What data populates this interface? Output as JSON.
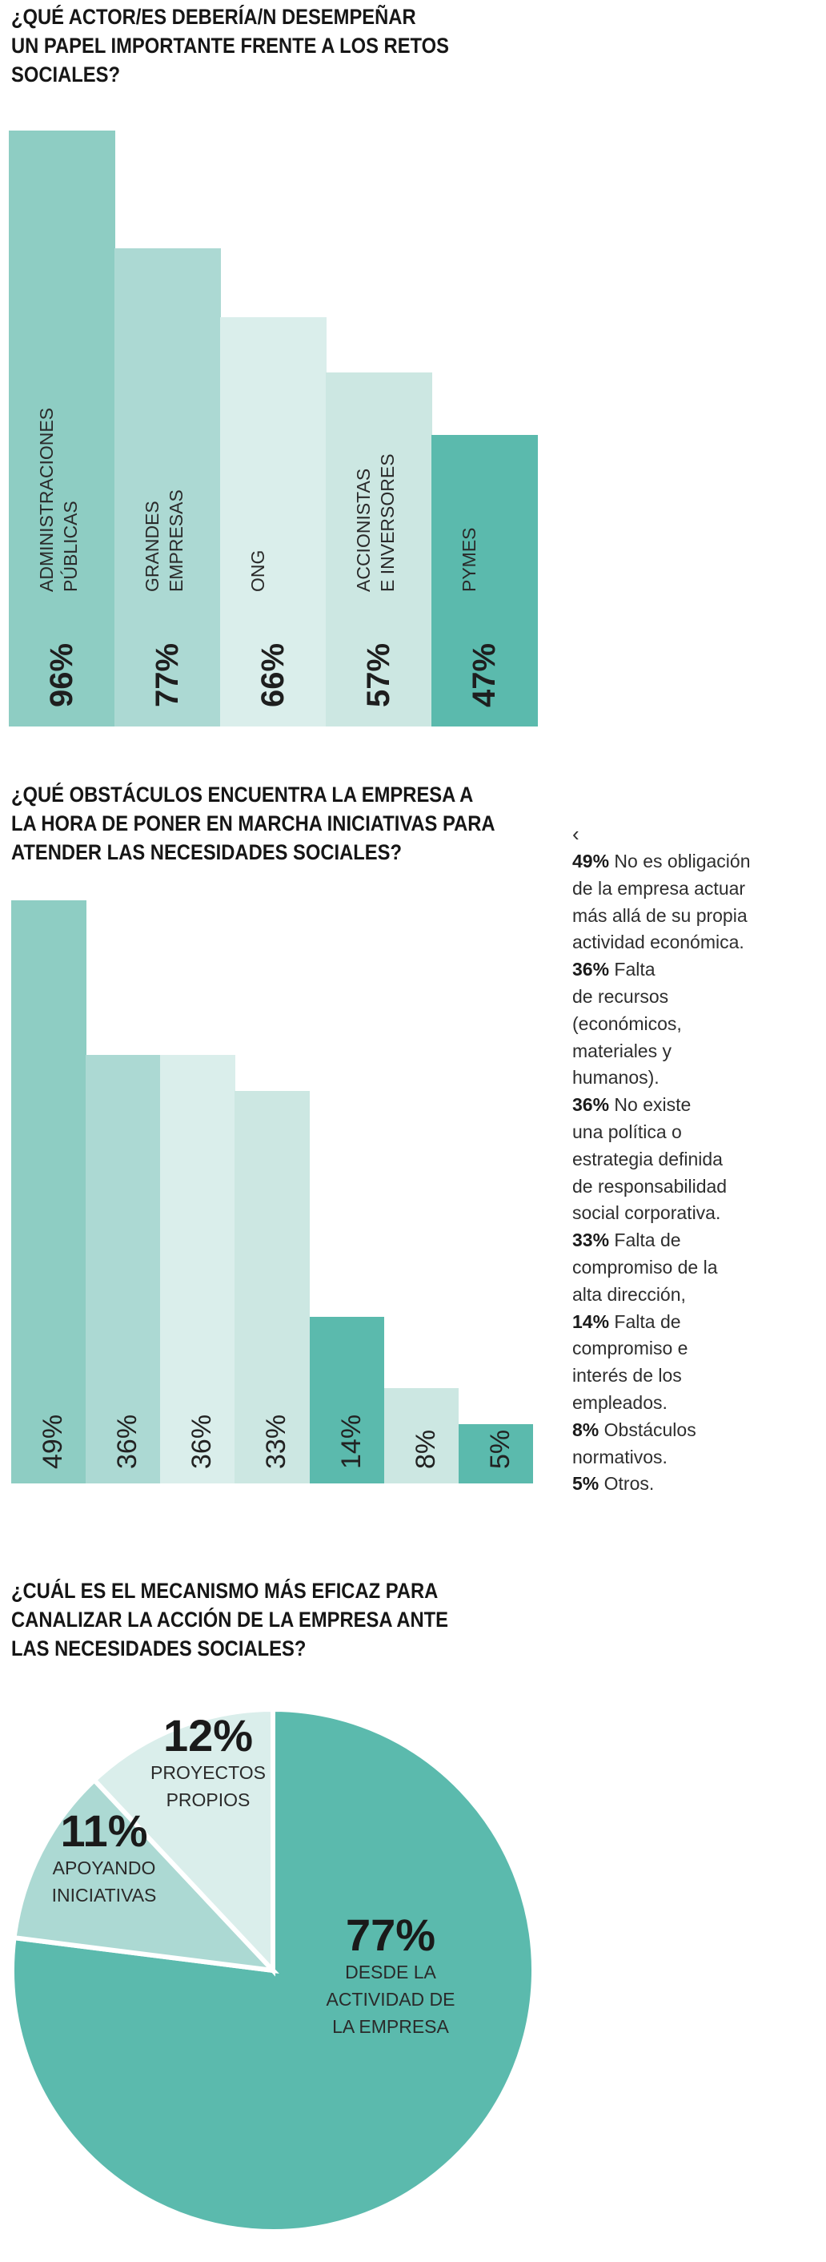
{
  "chart_data": [
    {
      "type": "bar",
      "title": "¿QUÉ ACTOR/ES DEBERÍA/N DESEMPEÑAR UN PAPEL IMPORTANTE FRENTE A LOS RETOS SOCIALES?",
      "title_lines": [
        "¿QUÉ ACTOR/ES DEBERÍA/N DESEMPEÑAR",
        "UN PAPEL IMPORTANTE FRENTE A LOS RETOS",
        "SOCIALES?"
      ],
      "categories": [
        "ADMINISTRACIONES PÚBLICAS",
        "GRANDES EMPRESAS",
        "ONG",
        "ACCIONISTAS E INVERSORES",
        "PYMES"
      ],
      "category_lines": [
        [
          "ADMINISTRACIONES",
          "PÚBLICAS"
        ],
        [
          "GRANDES",
          "EMPRESAS"
        ],
        [
          "ONG"
        ],
        [
          "ACCIONISTAS",
          "E INVERSORES"
        ],
        [
          "PYMES"
        ]
      ],
      "values": [
        96,
        77,
        66,
        57,
        47
      ],
      "labels": [
        "96%",
        "77%",
        "66%",
        "57%",
        "47%"
      ],
      "colors": [
        "#8ecdc3",
        "#acd9d3",
        "#daeeeb",
        "#cce7e2",
        "#5bbaad"
      ],
      "unit": "%",
      "xlabel": "",
      "ylabel": "",
      "grid": false
    },
    {
      "type": "bar",
      "title": "¿QUÉ OBSTÁCULOS ENCUENTRA LA EMPRESA A LA HORA DE PONER EN MARCHA INICIATIVAS PARA ATENDER LAS NECESIDADES SOCIALES?",
      "title_lines": [
        "¿QUÉ OBSTÁCULOS ENCUENTRA LA EMPRESA A",
        "LA HORA DE PONER EN MARCHA INICIATIVAS PARA",
        "ATENDER LAS NECESIDADES SOCIALES?"
      ],
      "categories": [
        "No es obligación de la empresa actuar más allá de su propia actividad económica.",
        "Falta de recursos (económicos, materiales y humanos).",
        "No existe una política o estrategia definida de responsabilidad social corporativa.",
        "Falta de compromiso de la alta dirección,",
        "Falta de compromiso e interés de los empleados.",
        "Obstáculos normativos.",
        "Otros."
      ],
      "values": [
        49,
        36,
        36,
        33,
        14,
        8,
        5
      ],
      "labels": [
        "49%",
        "36%",
        "36%",
        "33%",
        "14%",
        "8%",
        "5%"
      ],
      "colors": [
        "#8ecdc3",
        "#acd9d3",
        "#daeeeb",
        "#cce7e2",
        "#5bbaad",
        "#cce7e2",
        "#5bbaad"
      ],
      "legend_marker": "‹",
      "legend_items": [
        {
          "value": "49%",
          "lines": [
            "No es obligación",
            "de la empresa actuar",
            "más allá de su propia",
            "actividad económica."
          ]
        },
        {
          "value": "36%",
          "lines": [
            "Falta",
            "de recursos",
            "(económicos,",
            "materiales y",
            "humanos)."
          ]
        },
        {
          "value": "36%",
          "lines": [
            "No existe",
            "una política o",
            "estrategia definida",
            "de responsabilidad",
            "social corporativa."
          ]
        },
        {
          "value": "33%",
          "lines": [
            "Falta de",
            "compromiso de la",
            "alta dirección,"
          ]
        },
        {
          "value": "14%",
          "lines": [
            "Falta de",
            "compromiso e",
            "interés de los",
            "empleados."
          ]
        },
        {
          "value": "8%",
          "lines": [
            "Obstáculos",
            "normativos."
          ]
        },
        {
          "value": "5%",
          "lines": [
            "Otros."
          ]
        }
      ],
      "legend_placement": "right",
      "unit": "%",
      "grid": false
    },
    {
      "type": "pie",
      "title": "¿CUÁL ES EL MECANISMO MÁS EFICAZ PARA CANALIZAR LA ACCIÓN DE LA EMPRESA ANTE LAS NECESIDADES SOCIALES?",
      "title_lines": [
        "¿CUÁL ES EL MECANISMO MÁS EFICAZ PARA",
        "CANALIZAR LA ACCIÓN DE LA EMPRESA ANTE",
        "LAS NECESIDADES SOCIALES?"
      ],
      "slices": [
        {
          "label": "DESDE LA ACTIVIDAD DE LA EMPRESA",
          "label_lines": [
            "DESDE LA",
            "ACTIVIDAD DE",
            "LA EMPRESA"
          ],
          "value": 77,
          "display": "77%",
          "color": "#5bbaad"
        },
        {
          "label": "APOYANDO INICIATIVAS",
          "label_lines": [
            "APOYANDO",
            "INICIATIVAS"
          ],
          "value": 11,
          "display": "11%",
          "color": "#acd9d3"
        },
        {
          "label": "PROYECTOS PROPIOS",
          "label_lines": [
            "PROYECTOS",
            "PROPIOS"
          ],
          "value": 12,
          "display": "12%",
          "color": "#daeeeb"
        }
      ],
      "unit": "%"
    }
  ]
}
